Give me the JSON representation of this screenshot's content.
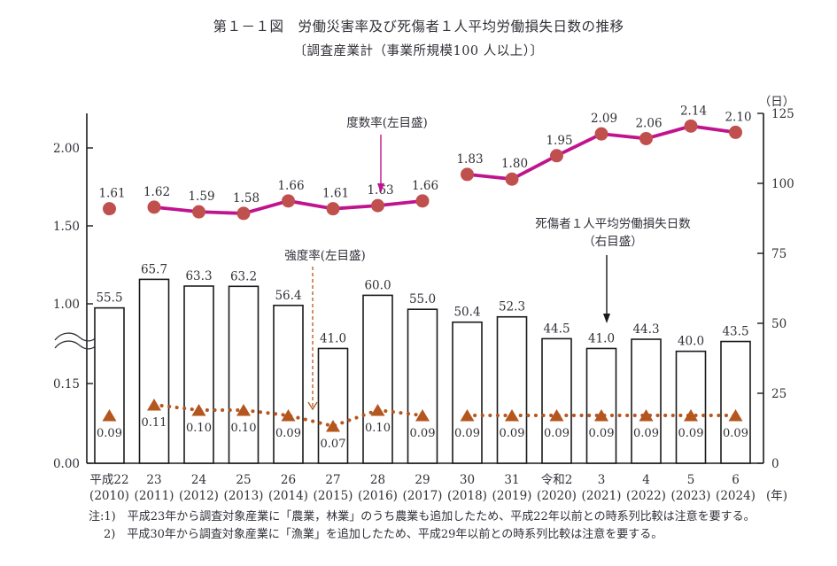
{
  "page": {
    "title": "第１－１図　労働災害率及び死傷者１人平均労働損失日数の推移",
    "subtitle": "〔調査産業計（事業所規模100 人以上）〕",
    "notes": [
      "注:1)　平成23年から調査対象産業に「農業，林業」のうち農業も追加したため、平成22年以前との時系列比較は注意を要する。",
      "2)　平成30年から調査対象産業に「漁業」を追加したため、平成29年以前との時系列比較は注意を要する。"
    ]
  },
  "chart_data": {
    "type": "bar+line",
    "categories_era": [
      "平成22",
      "23",
      "24",
      "25",
      "26",
      "27",
      "28",
      "29",
      "30",
      "31",
      "令和2",
      "3",
      "4",
      "5",
      "6"
    ],
    "categories_year": [
      "(2010)",
      "(2011)",
      "(2012)",
      "(2013)",
      "(2014)",
      "(2015)",
      "(2016)",
      "(2017)",
      "(2018)",
      "(2019)",
      "(2020)",
      "(2021)",
      "(2022)",
      "(2023)",
      "(2024)"
    ],
    "x_axis_unit": "(年)",
    "series": [
      {
        "name": "死傷者１人平均労働損失日数",
        "type": "bar",
        "axis": "right",
        "values": [
          55.5,
          65.7,
          63.3,
          63.2,
          56.4,
          41.0,
          60.0,
          55.0,
          50.4,
          52.3,
          44.5,
          41.0,
          44.3,
          40.0,
          43.5
        ]
      },
      {
        "name": "度数率",
        "type": "line",
        "axis": "left-upper",
        "values": [
          1.61,
          1.62,
          1.59,
          1.58,
          1.66,
          1.61,
          1.63,
          1.66,
          1.83,
          1.8,
          1.95,
          2.09,
          2.06,
          2.14,
          2.1
        ],
        "segments": [
          [
            0,
            0
          ],
          [
            1,
            7
          ],
          [
            8,
            14
          ]
        ]
      },
      {
        "name": "強度率",
        "type": "dotted-line",
        "axis": "left-lower",
        "values": [
          0.09,
          0.11,
          0.1,
          0.1,
          0.09,
          0.07,
          0.1,
          0.09,
          0.09,
          0.09,
          0.09,
          0.09,
          0.09,
          0.09,
          0.09
        ],
        "segments": [
          [
            0,
            0
          ],
          [
            1,
            7
          ],
          [
            8,
            14
          ]
        ]
      }
    ],
    "left_axis": {
      "upper_ticks": [
        2.0,
        1.5,
        1.0
      ],
      "lower_ticks": [
        0.15,
        0.0
      ],
      "has_break": true
    },
    "right_axis": {
      "unit": "（日）",
      "ticks": [
        125,
        100,
        75,
        50,
        25,
        0
      ]
    },
    "annotations": {
      "frequency": "度数率(左目盛)",
      "severity": "強度率(左目盛)",
      "days_line1": "死傷者１人平均労働損失日数",
      "days_line2": "（右目盛）"
    },
    "colors": {
      "frequency_line": "#C0148E",
      "frequency_marker": "#C0504D",
      "severity": "#B4561E",
      "bar_fill": "#FFFFFF",
      "bar_border": "#1A1A1A",
      "axis": "#1A1A1A",
      "text": "#303038"
    }
  }
}
